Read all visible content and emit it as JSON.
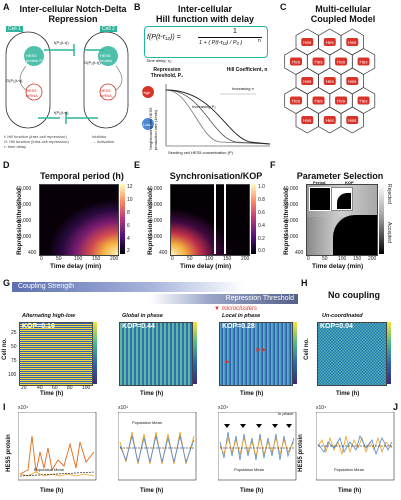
{
  "panels": {
    "a": {
      "letter": "A",
      "title": "Inter-cellular Notch-Delta Repression",
      "cell1": "Cell 1",
      "cell2": "Cell 2",
      "c1_protein": "HES5 protein P₁",
      "c1_mrna": "HES5 mRNA",
      "c2_protein": "HES5 protein",
      "c2_mrna": "HES5 mRNA",
      "c1_hill_top": "f(P₂(t-τ))",
      "c1_hill_mid": "G(P₁(t-τ))",
      "c2_hill_top": "f(P₁(t-τ))",
      "c2_hill_mid": "G(P₂(t-τ))",
      "c2_hill_bot": "f(P₁(t-τ))",
      "legend1": "f: Hill function (inter-cell repression)",
      "legend2": "G: Hill function (intra-cell repression)",
      "legend3": "τ: time delay",
      "legend4": "Inhibitor",
      "legend5": "→ Activation"
    },
    "b": {
      "letter": "B",
      "title1": "Inter-cellular",
      "title2": "Hill function with delay",
      "formula_lhs": "f(P(t-τ₁₂)) =",
      "formula_num": "1",
      "formula_den": "1 + ( P(t-τ₁₂) / P₀ )",
      "formula_exp": "n",
      "time_delay": "Time delay, τ₁₂",
      "rep_label": "Repression Threshold, P₀",
      "hill_label": "Hill Coefficient, n",
      "high": "High",
      "low": "Low",
      "inc_n": "Increasing n",
      "inc_p0": "Increasing P₀",
      "ylabel": "Neighbouring cell HES5 production rate (1/min)",
      "xlabel": "Sending cell HES5 concentration (P)"
    },
    "c": {
      "letter": "C",
      "title1": "Multi-cellular",
      "title2": "Coupled Model",
      "cell_label": "Hes"
    },
    "d": {
      "letter": "D",
      "title": "Temporal period (h)",
      "ylabel": "Repression threshold",
      "xlabel": "Time delay (min)",
      "yticks": [
        "40,000",
        "30,000",
        "20,000",
        "10,000",
        "400"
      ],
      "xticks": [
        "0",
        "50",
        "100",
        "150",
        "200"
      ],
      "cbticks": [
        "12",
        "10",
        "8",
        "6",
        "4",
        "2"
      ]
    },
    "e": {
      "letter": "E",
      "title": "Synchronisation/KOP",
      "ylabel": "Repression threshold",
      "xlabel": "Time delay (min)",
      "yticks": [
        "40,000",
        "30,000",
        "20,000",
        "10,000",
        "400"
      ],
      "xticks": [
        "0",
        "50",
        "100",
        "150",
        "200"
      ],
      "cbticks": [
        "1.0",
        "0.8",
        "0.6",
        "0.4",
        "0.2",
        "0.0"
      ]
    },
    "f": {
      "letter": "F",
      "title": "Parameter Selection",
      "sub1": "Period",
      "sub2": "KOP",
      "ylabel": "Repression threshold",
      "xlabel": "Time delay (min)",
      "yticks": [
        "40,000",
        "30,000",
        "20,000",
        "10,000",
        "400"
      ],
      "xticks": [
        "0",
        "50",
        "100",
        "150",
        "200"
      ],
      "cb_labels": [
        "Rejected",
        "Accepted"
      ]
    },
    "g": {
      "letter": "G",
      "bar1": "Coupling Strength",
      "bar2": "Repression Threshold",
      "microclusters": "microclusters",
      "k1_title": "Alternating high-low",
      "k1_kop": "KOP=0.16",
      "k2_title": "Global in phase",
      "k2_kop": "KOP=0.44",
      "k3_title": "Local in phase",
      "k3_kop": "KOP=0.28",
      "ylabel": "Cell no.",
      "xlabel": "Time (h)",
      "yticks": [
        "25",
        "50",
        "75",
        "100"
      ],
      "xticks": [
        "20",
        "40",
        "60",
        "80",
        "100"
      ]
    },
    "h": {
      "letter": "H",
      "title1": "No coupling",
      "k4_title": "Un-coordinated",
      "k4_kop": "KOP=0.04",
      "ylabel": "Cell no.",
      "xlabel": "Time (h)"
    },
    "i": {
      "letter": "I",
      "ylabel": "HES5 protein",
      "xlabel": "Time (h)",
      "scale1": "x10⁴",
      "scale2": "x10⁴",
      "scale3": "x10⁴",
      "legend": "Population Mean",
      "inphase": "In phase"
    },
    "j": {
      "letter": "J",
      "ylabel": "HES5 protein",
      "xlabel": "Time (h)",
      "scale": "x10⁴",
      "legend": "Population Mean"
    }
  },
  "colors": {
    "teal": "#23b6a0",
    "red": "#d8342a",
    "blue": "#4f8ad8",
    "gold": "#f0a020",
    "orange": "#e06a1a"
  }
}
